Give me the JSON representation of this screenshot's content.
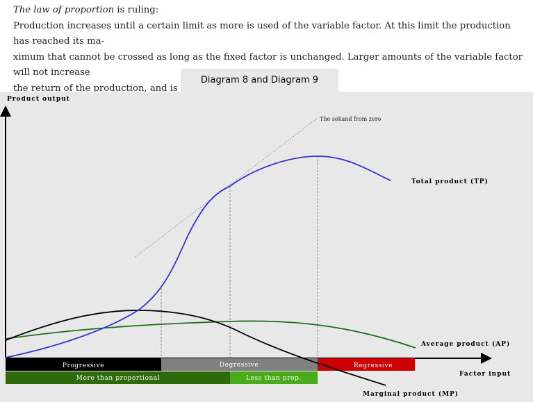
{
  "intro": {
    "line1_italic": "The law of proportion",
    "line1_rest": " is ruling:",
    "line2": "Production increases until a certain limit as more is used of the variable factor. At this limit the production has reached its ma-",
    "line3": "ximum that cannot be crossed as long as the fixed factor is unchanged. Larger amounts of the variable factor will not increase",
    "line4": "the  return of the production, and is therefore wasted."
  },
  "tab": {
    "title": "Diagram 8 and Diagram 9"
  },
  "diagram": {
    "y_axis_label": "Product output",
    "x_axis_label": "Factor input",
    "secant_label": "The sekand from zero",
    "curves": {
      "tp": {
        "label": "Total product (TP)",
        "color": "#3333cc"
      },
      "ap": {
        "label": "Average product (AP)",
        "color": "#1a6e1a"
      },
      "mp": {
        "label": "Marginal product (MP)",
        "color": "#000000"
      }
    },
    "phases": [
      {
        "label": "Progressive",
        "color": "#000000"
      },
      {
        "label": "Degressive",
        "color": "#808080"
      },
      {
        "label": "Regressive",
        "color": "#cc0000"
      }
    ],
    "proportion": [
      {
        "label": "More than proportional",
        "color": "#2d6a0a"
      },
      {
        "label": "Less than prop.",
        "color": "#4aaa1a"
      }
    ]
  }
}
